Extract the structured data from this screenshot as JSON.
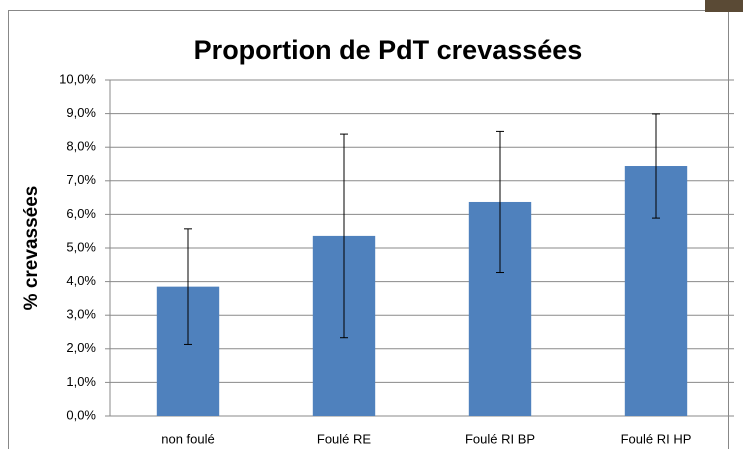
{
  "chart_data": {
    "type": "bar",
    "title": "Proportion de PdT crevassées",
    "y_label": "% crevassées",
    "categories": [
      "non foulé",
      "Foulé RE",
      "Foulé RI BP",
      "Foulé RI HP"
    ],
    "values": [
      3.85,
      5.36,
      6.37,
      7.44
    ],
    "errors": [
      1.72,
      3.03,
      2.1,
      1.55
    ],
    "color": "#4f81bd",
    "ylim": [
      0,
      10
    ],
    "yticks": [
      {
        "value": 0,
        "label": "0,0%"
      },
      {
        "value": 1,
        "label": "1,0%"
      },
      {
        "value": 2,
        "label": "2,0%"
      },
      {
        "value": 3,
        "label": "3,0%"
      },
      {
        "value": 4,
        "label": "4,0%"
      },
      {
        "value": 5,
        "label": "5,0%"
      },
      {
        "value": 6,
        "label": "6,0%"
      },
      {
        "value": 7,
        "label": "7,0%"
      },
      {
        "value": 8,
        "label": "8,0%"
      },
      {
        "value": 9,
        "label": "9,0%"
      },
      {
        "value": 10,
        "label": "10,0%"
      }
    ],
    "grid": true
  }
}
